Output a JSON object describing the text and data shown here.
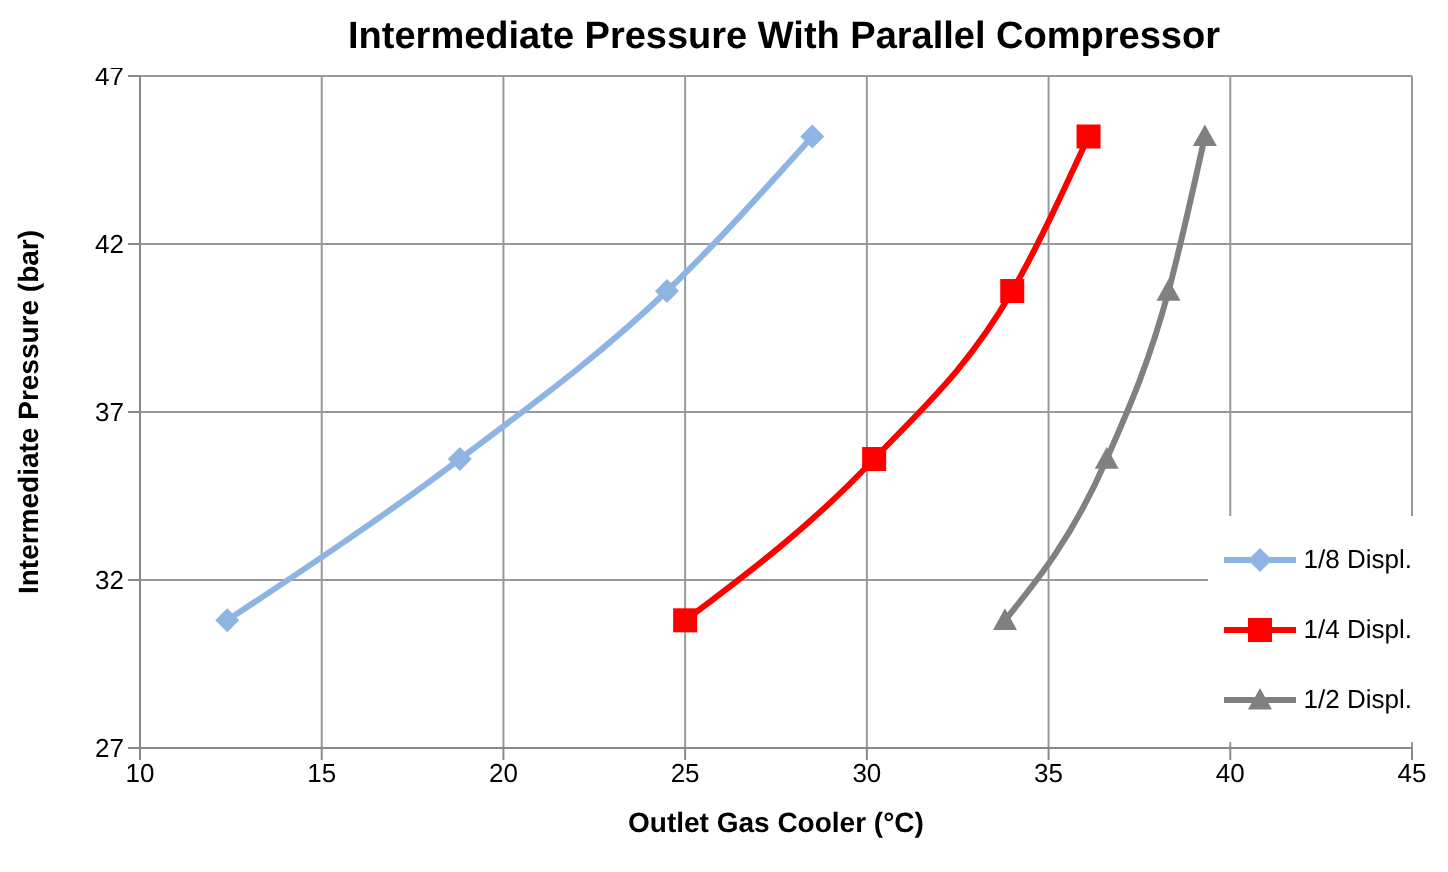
{
  "chart_data": {
    "type": "line",
    "title": "Intermediate Pressure With Parallel Compressor",
    "xlabel": "Outlet Gas Cooler (°C)",
    "ylabel": "Intermediate Pressure (bar)",
    "xlim": [
      10,
      45
    ],
    "xticks": [
      10,
      15,
      20,
      25,
      30,
      35,
      40,
      45
    ],
    "ylim": [
      27,
      47
    ],
    "yticks": [
      27,
      32,
      37,
      42,
      47
    ],
    "grid": true,
    "legend": "bottom right",
    "line_style": "solid",
    "series": [
      {
        "name": "1/8 Displ.",
        "color": "#8db4e2",
        "marker": "diamond",
        "x": [
          12.4,
          18.8,
          24.5,
          28.5
        ],
        "values": [
          30.8,
          35.6,
          40.6,
          45.2
        ]
      },
      {
        "name": "1/4 Displ.",
        "color": "#ff0000",
        "marker": "square",
        "x": [
          25.0,
          30.2,
          34.0,
          36.1
        ],
        "values": [
          30.8,
          35.6,
          40.6,
          45.2
        ]
      },
      {
        "name": "1/2 Displ.",
        "color": "#808080",
        "marker": "triangle",
        "x": [
          33.8,
          36.6,
          38.3,
          39.3
        ],
        "values": [
          30.8,
          35.6,
          40.6,
          45.2
        ]
      }
    ]
  }
}
